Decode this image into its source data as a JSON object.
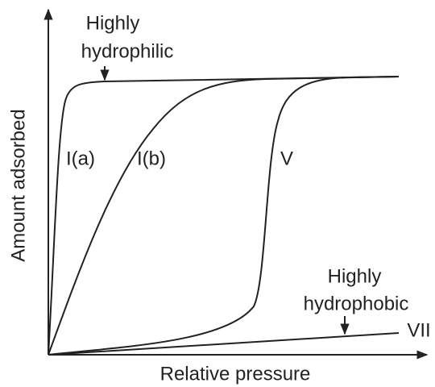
{
  "axes": {
    "x_label": "Relative pressure",
    "y_label": "Amount adsorbed"
  },
  "curves": [
    {
      "label": "I(a)"
    },
    {
      "label": "I(b)"
    },
    {
      "label": "V"
    },
    {
      "label": "VII"
    }
  ],
  "annotations": [
    {
      "lines": [
        "Highly",
        "hydrophilic"
      ]
    },
    {
      "lines": [
        "Highly",
        "hydrophobic"
      ]
    }
  ]
}
